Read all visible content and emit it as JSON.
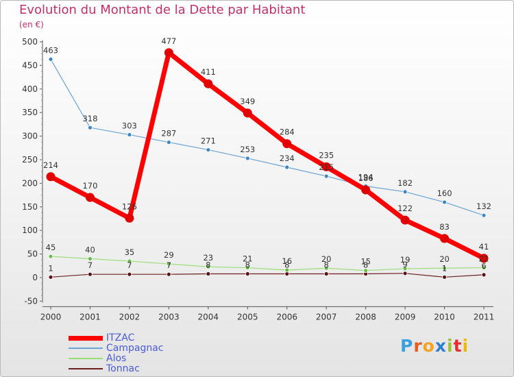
{
  "title": "Evolution du Montant de la Dette par Habitant",
  "subtitle": "(en €)",
  "chart_data": {
    "type": "line",
    "title": "Evolution du Montant de la Dette par Habitant",
    "subtitle": "(en €)",
    "x": [
      "2000",
      "2001",
      "2002",
      "2003",
      "2004",
      "2005",
      "2006",
      "2007",
      "2008",
      "2009",
      "2010",
      "2011"
    ],
    "ylim": [
      -50,
      500
    ],
    "yticks": [
      -50,
      0,
      50,
      100,
      150,
      200,
      250,
      300,
      350,
      400,
      450,
      500
    ],
    "grid": false,
    "legend_position": "bottom-left",
    "series": [
      {
        "name": "ITZAC",
        "color": "#e00000",
        "values": [
          214,
          170,
          126,
          477,
          411,
          349,
          284,
          235,
          186,
          122,
          83,
          41
        ],
        "labels": [
          "214",
          "170",
          "126",
          "477",
          "411",
          "349",
          "284",
          "235",
          "186",
          "122",
          "83",
          "41"
        ]
      },
      {
        "name": "Campagnac",
        "color": "#6aa3d5",
        "values": [
          463,
          318,
          303,
          287,
          271,
          253,
          234,
          215,
          194,
          182,
          160,
          132
        ],
        "labels": [
          "463",
          "318",
          "303",
          "287",
          "271",
          "253",
          "234",
          "215",
          "194",
          "182",
          "160",
          "132"
        ]
      },
      {
        "name": "Alos",
        "color": "#99dd77",
        "values": [
          45,
          40,
          35,
          29,
          23,
          21,
          16,
          20,
          15,
          19,
          20,
          21
        ],
        "labels": [
          "45",
          "40",
          "35",
          "29",
          "23",
          "21",
          "16",
          "20",
          "15",
          "19",
          "20",
          "21"
        ]
      },
      {
        "name": "Tonnac",
        "color": "#6b1f1f",
        "values": [
          1,
          7,
          7,
          7,
          8,
          8,
          8,
          8,
          8,
          9,
          1,
          6
        ],
        "labels": [
          "1",
          "7",
          "7",
          "7",
          "8",
          "8",
          "8",
          "8",
          "8",
          "9",
          "1",
          "6"
        ]
      }
    ]
  },
  "logo": {
    "letters": [
      "P",
      "r",
      "o",
      "x",
      "i",
      "t",
      "i"
    ],
    "colors": [
      "#3aa0e0",
      "#e85b1c",
      "#f4a321",
      "#2f7fd1",
      "#9ac338",
      "#e3302f",
      "#f0b800"
    ]
  }
}
